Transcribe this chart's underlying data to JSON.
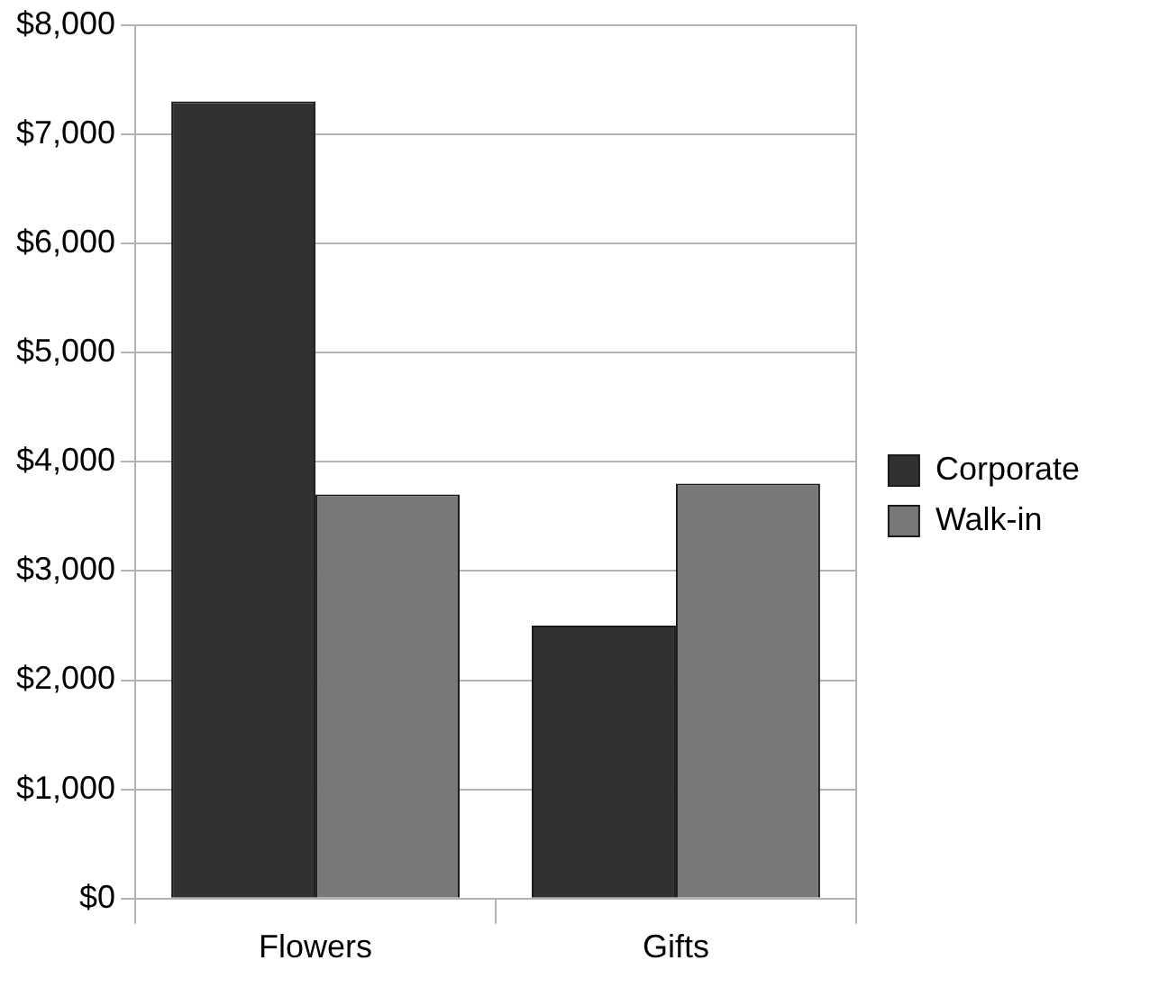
{
  "chart_data": {
    "type": "bar",
    "categories": [
      "Flowers",
      "Gifts"
    ],
    "series": [
      {
        "name": "Corporate",
        "color": "#313131",
        "values": [
          7300,
          2500
        ]
      },
      {
        "name": "Walk-in",
        "color": "#787878",
        "values": [
          3700,
          3800
        ]
      }
    ],
    "ylim": [
      0,
      8000
    ],
    "yticks": [
      {
        "value": 0,
        "label": "$0"
      },
      {
        "value": 1000,
        "label": "$1,000"
      },
      {
        "value": 2000,
        "label": "$2,000"
      },
      {
        "value": 3000,
        "label": "$3,000"
      },
      {
        "value": 4000,
        "label": "$4,000"
      },
      {
        "value": 5000,
        "label": "$5,000"
      },
      {
        "value": 6000,
        "label": "$6,000"
      },
      {
        "value": 7000,
        "label": "$7,000"
      },
      {
        "value": 8000,
        "label": "$8,000"
      }
    ],
    "grid": "y",
    "legend": "right"
  }
}
